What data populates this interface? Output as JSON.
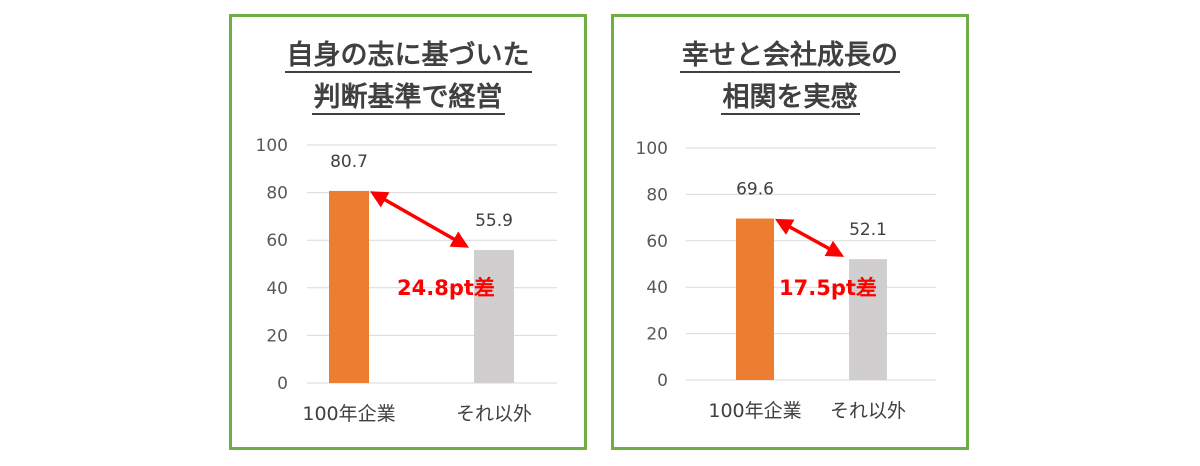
{
  "colors": {
    "border": "#70ad47",
    "highlight_bar": "#ed7d31",
    "other_bar": "#d0cece",
    "arrow": "#ff0000",
    "title": "#404040"
  },
  "chart_data": [
    {
      "type": "bar",
      "title_lines": [
        "自身の志に基づいた",
        "判断基準で経営"
      ],
      "categories": [
        "100年企業",
        "それ以外"
      ],
      "values": [
        80.7,
        55.9
      ],
      "value_labels": [
        "80.7",
        "55.9"
      ],
      "ylim": [
        0,
        100
      ],
      "yticks": [
        "0",
        "20",
        "40",
        "60",
        "80",
        "100"
      ],
      "grid": true,
      "annotation": "24.8pt差"
    },
    {
      "type": "bar",
      "title_lines": [
        "幸せと会社成長の",
        "相関を実感"
      ],
      "categories": [
        "100年企業",
        "それ以外"
      ],
      "values": [
        69.6,
        52.1
      ],
      "value_labels": [
        "69.6",
        "52.1"
      ],
      "ylim": [
        0,
        100
      ],
      "yticks": [
        "0",
        "20",
        "40",
        "60",
        "80",
        "100"
      ],
      "grid": true,
      "annotation": "17.5pt差"
    }
  ]
}
